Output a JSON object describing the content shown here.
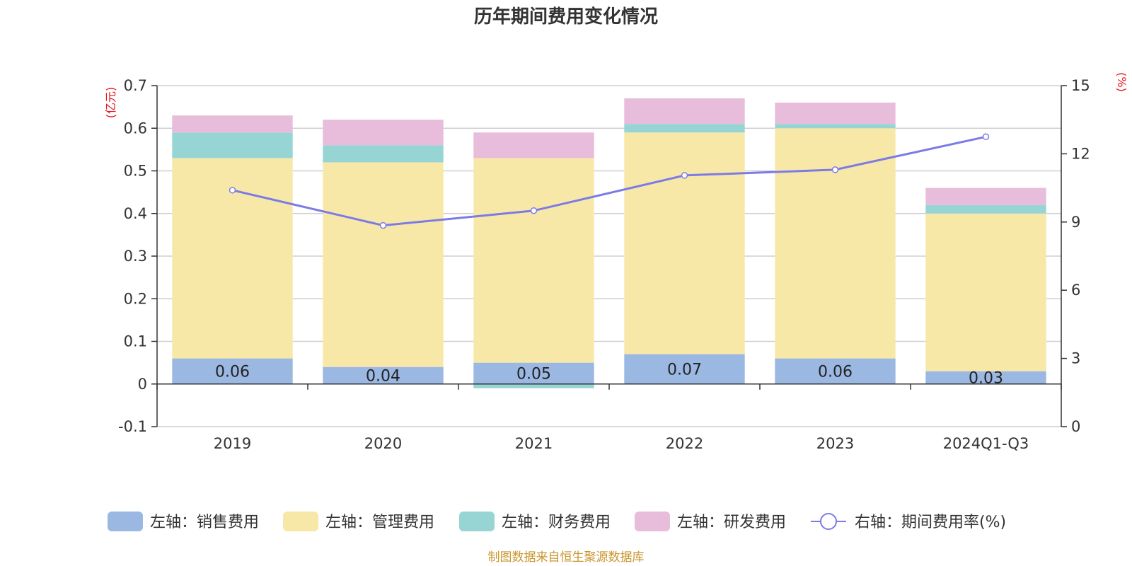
{
  "chart_data": {
    "type": "bar",
    "title": "历年期间费用变化情况",
    "categories": [
      "2019",
      "2020",
      "2021",
      "2022",
      "2023",
      "2024Q1-Q3"
    ],
    "left_axis": {
      "unit": "(亿元)",
      "ylim": [
        -0.1,
        0.7
      ],
      "ticks": [
        -0.1,
        0,
        0.1,
        0.2,
        0.3,
        0.4,
        0.5,
        0.6,
        0.7
      ]
    },
    "right_axis": {
      "unit": "(%)",
      "ylim": [
        0,
        15
      ],
      "ticks": [
        0,
        3,
        6,
        9,
        12,
        15
      ]
    },
    "series": [
      {
        "name": "左轴：销售费用",
        "type": "bar",
        "axis": "left",
        "color": "#9bb8e3",
        "values": [
          0.06,
          0.04,
          0.05,
          0.07,
          0.06,
          0.03
        ],
        "labels": [
          "0.06",
          "0.04",
          "0.05",
          "0.07",
          "0.06",
          "0.03"
        ]
      },
      {
        "name": "左轴：管理费用",
        "type": "bar",
        "axis": "left",
        "color": "#f8e8a8",
        "values": [
          0.47,
          0.48,
          0.48,
          0.52,
          0.54,
          0.37
        ]
      },
      {
        "name": "左轴：财务费用",
        "type": "bar",
        "axis": "left",
        "color": "#97d5d5",
        "values": [
          0.06,
          0.04,
          -0.01,
          0.02,
          0.01,
          0.02
        ]
      },
      {
        "name": "左轴：研发费用",
        "type": "bar",
        "axis": "left",
        "color": "#e8bcdb",
        "values": [
          0.04,
          0.06,
          0.06,
          0.06,
          0.05,
          0.04
        ]
      },
      {
        "name": "右轴：期间费用率(%)",
        "type": "line",
        "axis": "right",
        "color": "#7b7be6",
        "values": [
          10.4,
          8.85,
          9.5,
          11.05,
          11.3,
          12.75
        ]
      }
    ],
    "grid": true,
    "legend_position": "bottom",
    "source": "制图数据来自恒生聚源数据库"
  }
}
